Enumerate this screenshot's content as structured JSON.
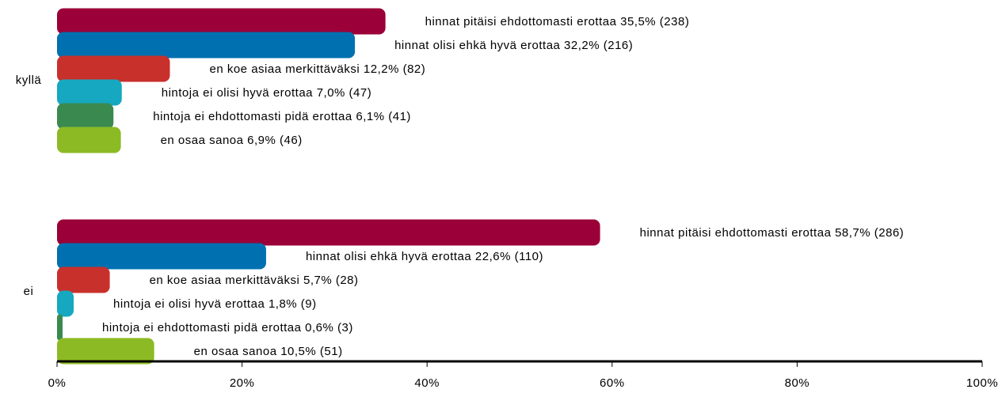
{
  "chart_data": {
    "type": "barh",
    "categories": [
      "kyllä",
      "ei"
    ],
    "series": [
      {
        "name": "hinnat pitäisi ehdottomasti erottaa",
        "color": "#9b0038",
        "values": [
          35.5,
          58.7
        ],
        "value_labels": [
          "hinnat pitäisi ehdottomasti erottaa 35,5% (238)",
          "hinnat pitäisi ehdottomasti erottaa 58,7% (286)"
        ]
      },
      {
        "name": "hinnat olisi ehkä hyvä erottaa",
        "color": "#0070b0",
        "values": [
          32.2,
          22.6
        ],
        "value_labels": [
          "hinnat olisi ehkä hyvä erottaa 32,2% (216)",
          "hinnat olisi ehkä hyvä erottaa 22,6% (110)"
        ]
      },
      {
        "name": "en koe asiaa merkittäväksi",
        "color": "#c8302c",
        "values": [
          12.2,
          5.7
        ],
        "value_labels": [
          "en koe asiaa merkittäväksi 12,2% (82)",
          "en koe asiaa merkittäväksi 5,7% (28)"
        ]
      },
      {
        "name": "hintoja ei olisi hyvä erottaa",
        "color": "#16a8c0",
        "values": [
          7.0,
          1.8
        ],
        "value_labels": [
          "hintoja ei olisi hyvä erottaa 7,0% (47)",
          "hintoja ei olisi hyvä erottaa 1,8% (9)"
        ]
      },
      {
        "name": "hintoja ei ehdottomasti pidä erottaa",
        "color": "#3a8a50",
        "values": [
          6.1,
          0.6
        ],
        "value_labels": [
          "hintoja ei ehdottomasti pidä erottaa 6,1% (41)",
          "hintoja ei ehdottomasti pidä erottaa 0,6% (3)"
        ]
      },
      {
        "name": "en osaa sanoa",
        "color": "#8cba24",
        "values": [
          6.9,
          10.5
        ],
        "value_labels": [
          "en osaa sanoa 6,9% (46)",
          "en osaa sanoa 10,5% (51)"
        ]
      }
    ],
    "xlim": [
      0,
      100
    ],
    "xticks": [
      {
        "value": 0,
        "label": "0%"
      },
      {
        "value": 20,
        "label": "20%"
      },
      {
        "value": 40,
        "label": "40%"
      },
      {
        "value": 60,
        "label": "60%"
      },
      {
        "value": 80,
        "label": "80%"
      },
      {
        "value": 100,
        "label": "100%"
      }
    ]
  }
}
